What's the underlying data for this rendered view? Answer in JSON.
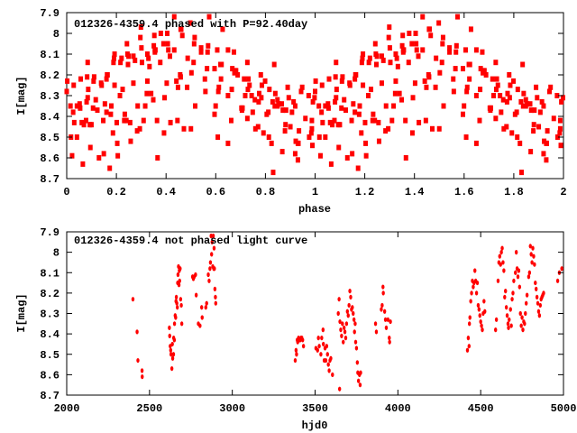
{
  "chart_data": [
    {
      "type": "scatter",
      "title": "012326-4359.4 phased with P=92.40day",
      "xlabel": "phase",
      "ylabel": "I[mag]",
      "period_days": 92.4,
      "xlim": [
        0,
        2
      ],
      "ylim": [
        8.7,
        7.9
      ],
      "y_inverted": true,
      "xticks": [
        "0",
        "0.2",
        "0.4",
        "0.6",
        "0.8",
        "1",
        "1.2",
        "1.4",
        "1.6",
        "1.8",
        "2"
      ],
      "xtick_values": [
        0,
        0.2,
        0.4,
        0.6,
        0.8,
        1,
        1.2,
        1.4,
        1.6,
        1.8,
        2
      ],
      "yticks": [
        "7.9",
        "8",
        "8.1",
        "8.2",
        "8.3",
        "8.4",
        "8.5",
        "8.6",
        "8.7"
      ],
      "ytick_values": [
        7.9,
        8.0,
        8.1,
        8.2,
        8.3,
        8.4,
        8.5,
        8.6,
        8.7
      ],
      "grid": false,
      "color": "#ff0000",
      "note": "points are the light-curve observations folded on the period, shown for two cycles"
    },
    {
      "type": "scatter",
      "title": "012326-4359.4 not phased light curve",
      "xlabel": "hjd0",
      "ylabel": "I[mag]",
      "xlim": [
        2000,
        5000
      ],
      "ylim": [
        8.7,
        7.9
      ],
      "y_inverted": true,
      "xticks": [
        "2000",
        "2500",
        "3000",
        "3500",
        "4000",
        "4500",
        "5000"
      ],
      "xtick_values": [
        2000,
        2500,
        3000,
        3500,
        4000,
        4500,
        5000
      ],
      "yticks": [
        "7.9",
        "8",
        "8.1",
        "8.2",
        "8.3",
        "8.4",
        "8.5",
        "8.6",
        "8.7"
      ],
      "ytick_values": [
        7.9,
        8.0,
        8.1,
        8.2,
        8.3,
        8.4,
        8.5,
        8.6,
        8.7
      ],
      "grid": false,
      "color": "#ff0000",
      "points": [
        [
          2400,
          8.23
        ],
        [
          2425,
          8.39
        ],
        [
          2430,
          8.53
        ],
        [
          2455,
          8.58
        ],
        [
          2456,
          8.61
        ],
        [
          2620,
          8.37
        ],
        [
          2622,
          8.41
        ],
        [
          2625,
          8.46
        ],
        [
          2628,
          8.48
        ],
        [
          2630,
          8.5
        ],
        [
          2635,
          8.57
        ],
        [
          2638,
          8.45
        ],
        [
          2640,
          8.52
        ],
        [
          2645,
          8.5
        ],
        [
          2646,
          8.42
        ],
        [
          2650,
          8.43
        ],
        [
          2651,
          8.35
        ],
        [
          2655,
          8.31
        ],
        [
          2658,
          8.32
        ],
        [
          2660,
          8.24
        ],
        [
          2662,
          8.22
        ],
        [
          2665,
          8.25
        ],
        [
          2668,
          8.27
        ],
        [
          2670,
          8.15
        ],
        [
          2672,
          8.11
        ],
        [
          2675,
          8.07
        ],
        [
          2678,
          8.16
        ],
        [
          2680,
          8.09
        ],
        [
          2682,
          8.14
        ],
        [
          2685,
          8.08
        ],
        [
          2688,
          8.23
        ],
        [
          2692,
          8.26
        ],
        [
          2695,
          8.35
        ],
        [
          2760,
          8.12
        ],
        [
          2765,
          8.13
        ],
        [
          2770,
          8.12
        ],
        [
          2778,
          8.11
        ],
        [
          2782,
          8.21
        ],
        [
          2795,
          8.35
        ],
        [
          2805,
          8.36
        ],
        [
          2815,
          8.27
        ],
        [
          2818,
          8.32
        ],
        [
          2840,
          8.27
        ],
        [
          2845,
          8.25
        ],
        [
          2855,
          8.11
        ],
        [
          2860,
          8.14
        ],
        [
          2865,
          8.08
        ],
        [
          2868,
          8.05
        ],
        [
          2872,
          7.92
        ],
        [
          2875,
          8.01
        ],
        [
          2878,
          7.95
        ],
        [
          2882,
          8.07
        ],
        [
          2885,
          7.92
        ],
        [
          2888,
          8.08
        ],
        [
          2890,
          7.98
        ],
        [
          2892,
          8.08
        ],
        [
          2895,
          8.18
        ],
        [
          2898,
          8.22
        ],
        [
          2900,
          8.25
        ],
        [
          3380,
          8.53
        ],
        [
          3385,
          8.48
        ],
        [
          3388,
          8.5
        ],
        [
          3392,
          8.43
        ],
        [
          3395,
          8.44
        ],
        [
          3400,
          8.42
        ],
        [
          3405,
          8.43
        ],
        [
          3410,
          8.43
        ],
        [
          3415,
          8.42
        ],
        [
          3420,
          8.42
        ],
        [
          3425,
          8.43
        ],
        [
          3430,
          8.46
        ],
        [
          3505,
          8.47
        ],
        [
          3515,
          8.48
        ],
        [
          3520,
          8.42
        ],
        [
          3525,
          8.46
        ],
        [
          3535,
          8.5
        ],
        [
          3540,
          8.42
        ],
        [
          3548,
          8.38
        ],
        [
          3550,
          8.45
        ],
        [
          3555,
          8.53
        ],
        [
          3560,
          8.47
        ],
        [
          3565,
          8.53
        ],
        [
          3570,
          8.46
        ],
        [
          3575,
          8.5
        ],
        [
          3580,
          8.55
        ],
        [
          3585,
          8.58
        ],
        [
          3590,
          8.53
        ],
        [
          3595,
          8.52
        ],
        [
          3605,
          8.6
        ],
        [
          3640,
          8.3
        ],
        [
          3645,
          8.23
        ],
        [
          3648,
          8.67
        ],
        [
          3650,
          8.34
        ],
        [
          3655,
          8.38
        ],
        [
          3660,
          8.41
        ],
        [
          3665,
          8.35
        ],
        [
          3670,
          8.44
        ],
        [
          3675,
          8.37
        ],
        [
          3680,
          8.39
        ],
        [
          3685,
          8.42
        ],
        [
          3690,
          8.35
        ],
        [
          3695,
          8.29
        ],
        [
          3700,
          8.31
        ],
        [
          3705,
          8.26
        ],
        [
          3710,
          8.19
        ],
        [
          3715,
          8.22
        ],
        [
          3720,
          8.28
        ],
        [
          3725,
          8.27
        ],
        [
          3730,
          8.3
        ],
        [
          3735,
          8.33
        ],
        [
          3738,
          8.39
        ],
        [
          3742,
          8.35
        ],
        [
          3745,
          8.44
        ],
        [
          3750,
          8.47
        ],
        [
          3755,
          8.54
        ],
        [
          3758,
          8.59
        ],
        [
          3762,
          8.63
        ],
        [
          3768,
          8.6
        ],
        [
          3772,
          8.65
        ],
        [
          3775,
          8.59
        ],
        [
          3865,
          8.35
        ],
        [
          3870,
          8.39
        ],
        [
          3900,
          8.28
        ],
        [
          3905,
          8.26
        ],
        [
          3910,
          8.17
        ],
        [
          3912,
          8.2
        ],
        [
          3920,
          8.29
        ],
        [
          3925,
          8.33
        ],
        [
          3930,
          8.37
        ],
        [
          3940,
          8.33
        ],
        [
          3948,
          8.42
        ],
        [
          3950,
          8.44
        ],
        [
          3955,
          8.34
        ],
        [
          4420,
          8.48
        ],
        [
          4425,
          8.42
        ],
        [
          4430,
          8.46
        ],
        [
          4432,
          8.35
        ],
        [
          4435,
          8.32
        ],
        [
          4440,
          8.24
        ],
        [
          4445,
          8.2
        ],
        [
          4450,
          8.14
        ],
        [
          4455,
          8.17
        ],
        [
          4460,
          8.15
        ],
        [
          4465,
          8.09
        ],
        [
          4470,
          8.14
        ],
        [
          4475,
          8.2
        ],
        [
          4480,
          8.15
        ],
        [
          4485,
          8.26
        ],
        [
          4490,
          8.28
        ],
        [
          4495,
          8.31
        ],
        [
          4500,
          8.34
        ],
        [
          4505,
          8.36
        ],
        [
          4510,
          8.38
        ],
        [
          4515,
          8.3
        ],
        [
          4520,
          8.24
        ],
        [
          4525,
          8.29
        ],
        [
          4590,
          8.38
        ],
        [
          4595,
          8.33
        ],
        [
          4605,
          8.14
        ],
        [
          4610,
          8.05
        ],
        [
          4615,
          8.02
        ],
        [
          4620,
          8.06
        ],
        [
          4625,
          8.0
        ],
        [
          4630,
          7.98
        ],
        [
          4635,
          8.05
        ],
        [
          4640,
          8.09
        ],
        [
          4645,
          8.22
        ],
        [
          4650,
          8.19
        ],
        [
          4655,
          8.27
        ],
        [
          4660,
          8.31
        ],
        [
          4665,
          8.35
        ],
        [
          4668,
          8.37
        ],
        [
          4672,
          8.33
        ],
        [
          4680,
          8.28
        ],
        [
          4685,
          8.36
        ],
        [
          4690,
          8.23
        ],
        [
          4695,
          8.2
        ],
        [
          4700,
          8.14
        ],
        [
          4710,
          8.1
        ],
        [
          4715,
          8.0
        ],
        [
          4720,
          8.08
        ],
        [
          4725,
          8.12
        ],
        [
          4730,
          8.09
        ],
        [
          4735,
          8.17
        ],
        [
          4740,
          8.3
        ],
        [
          4745,
          8.36
        ],
        [
          4750,
          8.32
        ],
        [
          4755,
          8.38
        ],
        [
          4760,
          8.34
        ],
        [
          4765,
          8.35
        ],
        [
          4770,
          8.3
        ],
        [
          4775,
          8.25
        ],
        [
          4780,
          8.21
        ],
        [
          4790,
          8.12
        ],
        [
          4795,
          8.1
        ],
        [
          4800,
          7.97
        ],
        [
          4805,
          8.01
        ],
        [
          4810,
          8.05
        ],
        [
          4815,
          7.98
        ],
        [
          4820,
          8.02
        ],
        [
          4825,
          8.06
        ],
        [
          4830,
          8.15
        ],
        [
          4835,
          8.18
        ],
        [
          4840,
          8.22
        ],
        [
          4845,
          8.25
        ],
        [
          4850,
          8.29
        ],
        [
          4855,
          8.31
        ],
        [
          4860,
          8.26
        ],
        [
          4865,
          8.23
        ],
        [
          4870,
          8.22
        ],
        [
          4875,
          8.21
        ],
        [
          4880,
          8.2
        ],
        [
          4965,
          8.14
        ],
        [
          4975,
          8.1
        ],
        [
          4990,
          8.08
        ]
      ]
    }
  ]
}
